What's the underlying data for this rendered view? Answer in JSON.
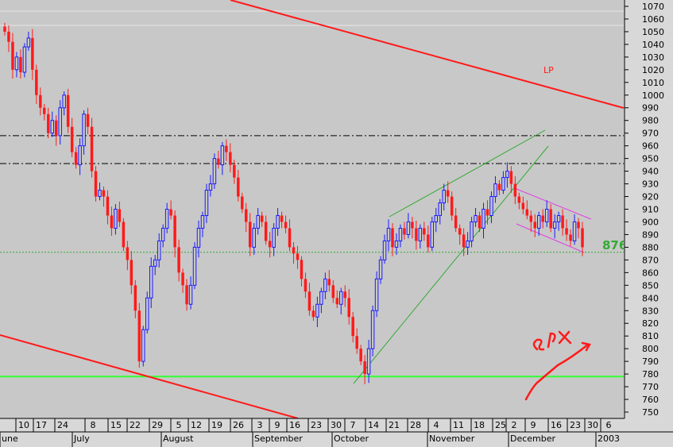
{
  "chart_data": {
    "type": "candlestick",
    "colors": {
      "up_candle": "#1a1aff",
      "down_candle": "#ff1a1a",
      "background": "#c8c8c8",
      "support_line": "#33ff33",
      "channel_line": "#ff1a1a",
      "wedge_line": "#33aa33",
      "flag_line": "#e040e0",
      "reference_line": "#000000",
      "annotation_green": "#33aa33",
      "annotation_red": "#ff1a1a"
    },
    "y_axis": {
      "side": "right",
      "ylim": [
        745,
        1075
      ],
      "ticks": [
        750,
        760,
        770,
        780,
        790,
        800,
        810,
        820,
        830,
        840,
        850,
        860,
        870,
        880,
        890,
        900,
        910,
        920,
        930,
        940,
        950,
        960,
        970,
        980,
        990,
        1000,
        1010,
        1020,
        1030,
        1040,
        1050,
        1060,
        1070
      ]
    },
    "x_axis": {
      "day_labels": [
        "10",
        "17",
        "24",
        "8",
        "15",
        "22",
        "29",
        "5",
        "12",
        "19",
        "26",
        "3",
        "9",
        "16",
        "23",
        "30",
        "7",
        "14",
        "21",
        "28",
        "4",
        "11",
        "18",
        "25",
        "2",
        "9",
        "16",
        "23",
        "30",
        "6"
      ],
      "month_labels": [
        "une",
        "July",
        "August",
        "September",
        "October",
        "November",
        "December",
        "2003"
      ]
    },
    "horizontal_lines": [
      {
        "value": 968,
        "style": "dash-dot",
        "color": "#000000"
      },
      {
        "value": 946,
        "style": "dash-dot",
        "color": "#000000"
      },
      {
        "value": 876,
        "style": "dotted",
        "color": "#33aa33"
      },
      {
        "value": 778,
        "style": "solid",
        "color": "#33ff33"
      }
    ],
    "annotations": [
      {
        "text": "876",
        "value": 876
      },
      {
        "text": "LP",
        "value": 1015
      },
      {
        "text": "SPX",
        "handwritten": true
      }
    ],
    "closes": [
      1050,
      1042,
      1020,
      1030,
      1018,
      1038,
      1045,
      1020,
      1000,
      990,
      985,
      970,
      980,
      968,
      990,
      1000,
      975,
      955,
      945,
      960,
      985,
      975,
      940,
      920,
      925,
      920,
      905,
      895,
      910,
      900,
      880,
      870,
      850,
      830,
      790,
      815,
      840,
      865,
      870,
      885,
      895,
      910,
      905,
      880,
      860,
      850,
      835,
      850,
      880,
      895,
      905,
      925,
      930,
      950,
      945,
      960,
      955,
      945,
      935,
      920,
      910,
      900,
      880,
      895,
      905,
      900,
      885,
      880,
      895,
      905,
      900,
      895,
      880,
      875,
      870,
      855,
      845,
      830,
      825,
      835,
      845,
      855,
      850,
      840,
      835,
      845,
      840,
      825,
      810,
      800,
      790,
      780,
      800,
      830,
      855,
      870,
      885,
      895,
      880,
      885,
      895,
      890,
      900,
      895,
      885,
      895,
      890,
      880,
      900,
      905,
      915,
      925,
      920,
      905,
      895,
      890,
      880,
      885,
      900,
      905,
      895,
      910,
      905,
      920,
      930,
      925,
      935,
      940,
      930,
      920,
      915,
      910,
      905,
      900,
      895,
      905,
      900,
      910,
      895,
      900,
      905,
      895,
      890,
      885,
      900,
      895,
      880
    ]
  }
}
